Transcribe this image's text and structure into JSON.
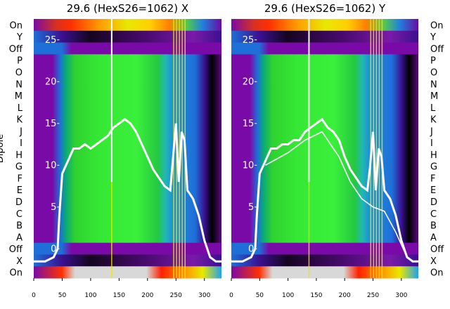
{
  "chart_data": {
    "type": "heatmap",
    "panels": [
      {
        "title": "29.6 (HexS26=1062) X",
        "bottom_row_labels": [
          "Off",
          "X",
          "On"
        ],
        "marker_lines_x": [
          137,
          246,
          251,
          256,
          261,
          266
        ]
      },
      {
        "title": "29.6 (HexS26=1062) Y",
        "bottom_row_labels": [
          "Off",
          "X",
          "On"
        ],
        "marker_lines_x": [
          137,
          246,
          251,
          256,
          261,
          266
        ]
      }
    ],
    "left_row_labels": [
      "On",
      "Y",
      "Off",
      "P",
      "O",
      "N",
      "M",
      "L",
      "K",
      "J",
      "I",
      "H",
      "G",
      "F",
      "E",
      "D",
      "C",
      "B",
      "A",
      "Off",
      "X",
      "On"
    ],
    "right_row_labels": [
      "On",
      "Y",
      "Off",
      "P",
      "O",
      "N",
      "M",
      "L",
      "K",
      "J",
      "I",
      "H",
      "G",
      "F",
      "E",
      "D",
      "C",
      "B",
      "A",
      "Off",
      "X",
      "On"
    ],
    "ylabel": "Dipole",
    "x_ticks": [
      0,
      50,
      100,
      150,
      200,
      250,
      300
    ],
    "xlim": [
      0,
      330
    ],
    "overlay_y_ticks": [
      0,
      5,
      10,
      15,
      20,
      25
    ],
    "overlay_ylim": [
      -3.5,
      27.5
    ],
    "series": [
      {
        "panel": 0,
        "points": [
          [
            0,
            -1.5
          ],
          [
            20,
            -1.5
          ],
          [
            35,
            -1.0
          ],
          [
            42,
            0.0
          ],
          [
            45,
            4.0
          ],
          [
            50,
            9.0
          ],
          [
            60,
            10.5
          ],
          [
            70,
            12.0
          ],
          [
            80,
            12.0
          ],
          [
            90,
            12.5
          ],
          [
            100,
            12.0
          ],
          [
            110,
            12.5
          ],
          [
            120,
            13.0
          ],
          [
            130,
            13.5
          ],
          [
            140,
            14.5
          ],
          [
            150,
            15.0
          ],
          [
            160,
            15.5
          ],
          [
            170,
            15.0
          ],
          [
            180,
            14.0
          ],
          [
            190,
            12.5
          ],
          [
            200,
            11.0
          ],
          [
            210,
            9.5
          ],
          [
            220,
            8.5
          ],
          [
            230,
            7.5
          ],
          [
            240,
            7.0
          ],
          [
            245,
            11.0
          ],
          [
            250,
            15.0
          ],
          [
            255,
            8.0
          ],
          [
            260,
            14.0
          ],
          [
            265,
            13.0
          ],
          [
            270,
            7.0
          ],
          [
            280,
            6.0
          ],
          [
            290,
            4.0
          ],
          [
            300,
            1.0
          ],
          [
            310,
            -1.0
          ],
          [
            320,
            -1.5
          ],
          [
            330,
            -1.5
          ]
        ]
      },
      {
        "panel": 1,
        "points": [
          [
            0,
            -1.5
          ],
          [
            20,
            -1.5
          ],
          [
            35,
            -1.0
          ],
          [
            42,
            0.0
          ],
          [
            45,
            4.0
          ],
          [
            50,
            9.0
          ],
          [
            60,
            10.5
          ],
          [
            70,
            12.0
          ],
          [
            80,
            12.0
          ],
          [
            90,
            12.5
          ],
          [
            100,
            12.5
          ],
          [
            110,
            13.0
          ],
          [
            120,
            13.0
          ],
          [
            130,
            14.0
          ],
          [
            140,
            14.5
          ],
          [
            150,
            15.0
          ],
          [
            160,
            15.5
          ],
          [
            170,
            14.5
          ],
          [
            180,
            14.0
          ],
          [
            190,
            13.0
          ],
          [
            200,
            11.0
          ],
          [
            210,
            9.5
          ],
          [
            220,
            8.5
          ],
          [
            230,
            7.5
          ],
          [
            240,
            7.0
          ],
          [
            245,
            10.0
          ],
          [
            250,
            14.0
          ],
          [
            255,
            7.0
          ],
          [
            260,
            12.0
          ],
          [
            265,
            11.0
          ],
          [
            270,
            7.0
          ],
          [
            280,
            6.0
          ],
          [
            290,
            4.0
          ],
          [
            300,
            1.0
          ],
          [
            310,
            -1.0
          ],
          [
            320,
            -1.5
          ],
          [
            330,
            -1.5
          ]
        ]
      },
      {
        "panel": 1,
        "points": [
          [
            60,
            10.0
          ],
          [
            100,
            11.5
          ],
          [
            130,
            13.0
          ],
          [
            160,
            14.0
          ],
          [
            190,
            11.0
          ],
          [
            210,
            8.0
          ],
          [
            230,
            6.0
          ],
          [
            250,
            5.0
          ],
          [
            270,
            4.5
          ],
          [
            290,
            2.0
          ],
          [
            310,
            -1.0
          ]
        ]
      }
    ]
  }
}
